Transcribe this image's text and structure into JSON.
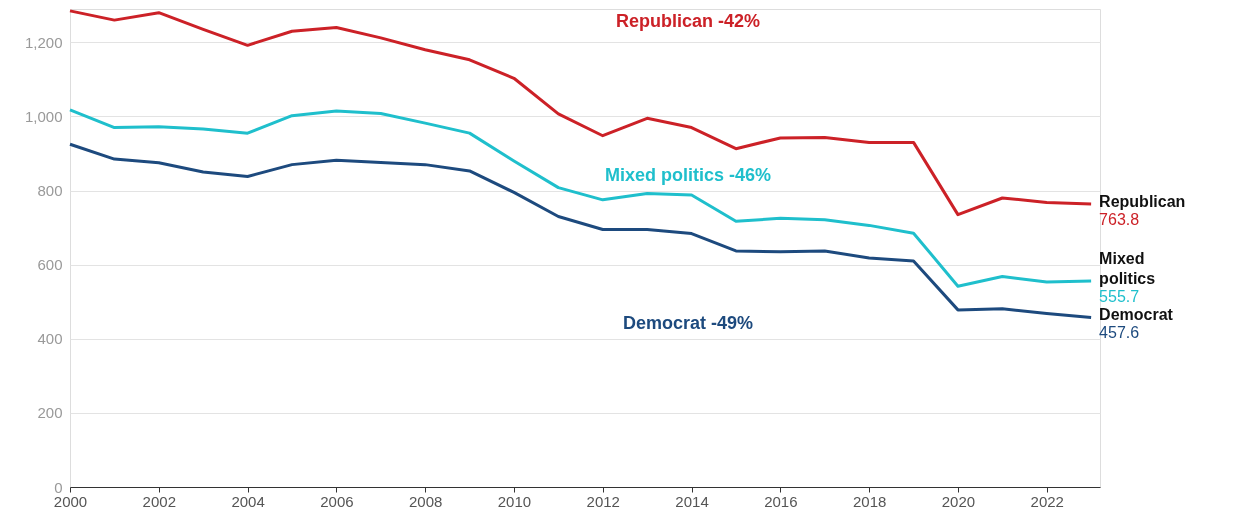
{
  "chart_data": {
    "type": "line",
    "x": [
      2000,
      2001,
      2002,
      2003,
      2004,
      2005,
      2006,
      2007,
      2008,
      2009,
      2010,
      2011,
      2012,
      2013,
      2014,
      2015,
      2016,
      2017,
      2018,
      2019,
      2020,
      2021,
      2022,
      2023
    ],
    "series": [
      {
        "name": "Republican",
        "color": "#cc2127",
        "values": [
          1285,
          1260,
          1280,
          1235,
          1192,
          1230,
          1240,
          1212,
          1180,
          1153,
          1103,
          1007,
          948,
          995,
          970,
          913,
          942,
          943,
          930,
          930,
          735,
          780,
          768,
          763.8
        ],
        "value_labels": [
          null,
          null,
          null,
          null,
          null,
          null,
          null,
          null,
          null,
          null,
          null,
          null,
          null,
          null,
          null,
          null,
          null,
          null,
          null,
          null,
          null,
          null,
          null,
          "763.8"
        ]
      },
      {
        "name": "Mixed politics",
        "color": "#1fbfcc",
        "values": [
          1018,
          970,
          972,
          966,
          955,
          1002,
          1015,
          1008,
          982,
          955,
          880,
          808,
          775,
          792,
          788,
          717,
          725,
          721,
          706,
          685,
          542,
          568,
          553,
          555.7
        ],
        "value_labels": [
          null,
          null,
          null,
          null,
          null,
          null,
          null,
          null,
          null,
          null,
          null,
          null,
          null,
          null,
          null,
          null,
          null,
          null,
          null,
          null,
          null,
          null,
          null,
          "555.7"
        ]
      },
      {
        "name": "Democrat",
        "color": "#1d4a7e",
        "values": [
          925,
          885,
          875,
          850,
          838,
          870,
          882,
          876,
          870,
          853,
          795,
          730,
          695,
          695,
          684,
          637,
          635,
          637,
          618,
          610,
          478,
          481,
          468,
          457.6
        ],
        "value_labels": [
          null,
          null,
          null,
          null,
          null,
          null,
          null,
          null,
          null,
          null,
          null,
          null,
          null,
          null,
          null,
          null,
          null,
          null,
          null,
          null,
          null,
          null,
          null,
          "457.6"
        ]
      }
    ],
    "annotations": [
      "Republican -42%",
      "Mixed politics -46%",
      "Democrat -49%"
    ],
    "xlim": [
      2000,
      2023.2
    ],
    "xticks": [
      2000,
      2002,
      2004,
      2006,
      2008,
      2010,
      2012,
      2014,
      2016,
      2018,
      2020,
      2022
    ],
    "ylim": [
      0,
      1290
    ],
    "yticks": [
      0,
      200,
      400,
      600,
      800,
      {
        "value": 1000,
        "label": "1,000"
      },
      {
        "value": 1200,
        "label": "1,200"
      }
    ],
    "grid": "y",
    "marker": "none",
    "line_style": "solid"
  }
}
